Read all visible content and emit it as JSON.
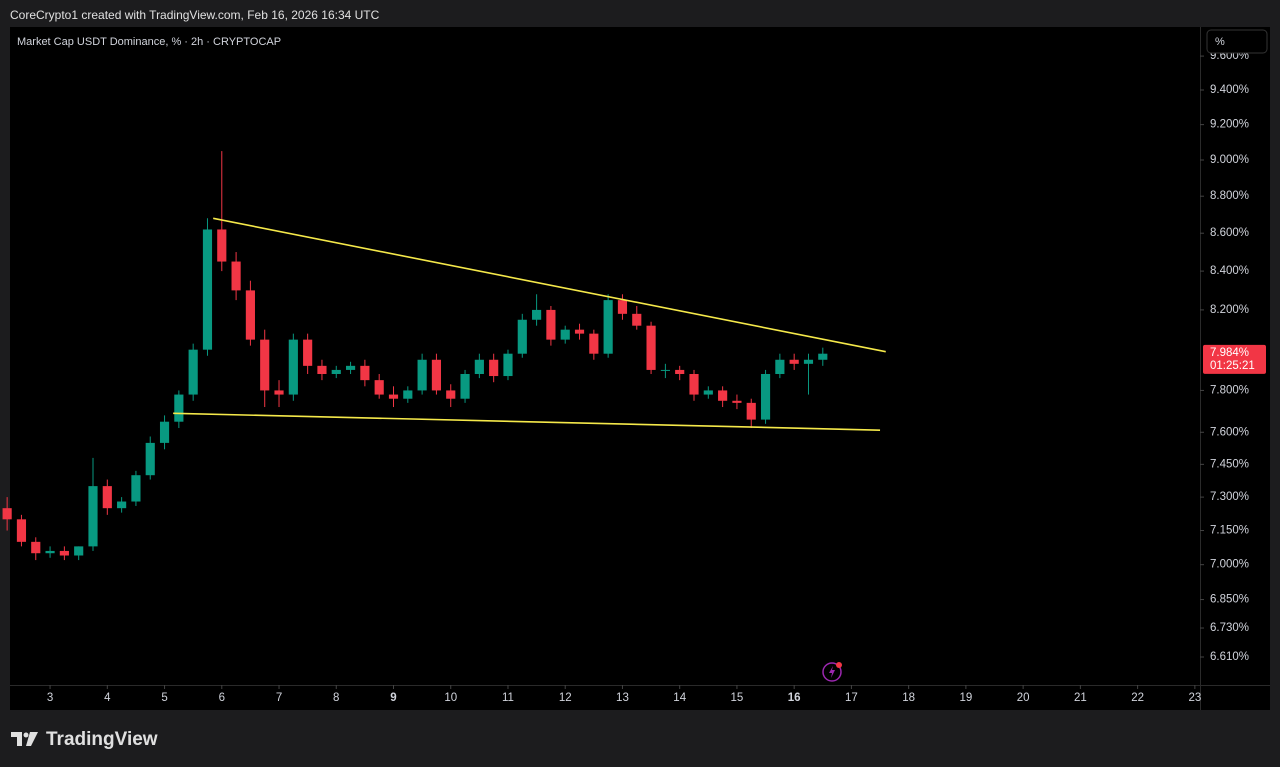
{
  "header": "CoreCrypto1 created with TradingView.com, Feb 16, 2026 16:34 UTC",
  "logo": "TradingView",
  "scale_button": "%",
  "chart_data": {
    "type": "candlestick",
    "title": "Market Cap USDT Dominance, % · 2h · CRYPTOCAP",
    "log_scale": true,
    "up_color": "#089981",
    "down_color": "#f23645",
    "x": [
      2.25,
      2.5,
      2.75,
      3,
      3.25,
      3.5,
      3.75,
      4,
      4.25,
      4.5,
      4.75,
      5,
      5.25,
      5.5,
      5.75,
      6,
      6.25,
      6.5,
      6.75,
      7,
      7.25,
      7.5,
      7.75,
      8,
      8.25,
      8.5,
      8.75,
      9,
      9.25,
      9.5,
      9.75,
      10,
      10.25,
      10.5,
      10.75,
      11,
      11.25,
      11.5,
      11.75,
      12,
      12.25,
      12.5,
      12.75,
      13,
      13.25,
      13.5,
      13.75,
      14,
      14.25,
      14.5,
      14.75,
      15,
      15.25,
      15.5,
      15.75,
      16,
      16.25,
      16.5
    ],
    "open": [
      7.25,
      7.2,
      7.1,
      7.05,
      7.06,
      7.04,
      7.08,
      7.35,
      7.25,
      7.28,
      7.4,
      7.55,
      7.65,
      7.78,
      8.0,
      8.62,
      8.45,
      8.3,
      8.05,
      7.8,
      7.78,
      8.05,
      7.92,
      7.88,
      7.9,
      7.92,
      7.85,
      7.78,
      7.76,
      7.8,
      7.95,
      7.8,
      7.76,
      7.88,
      7.95,
      7.87,
      7.98,
      8.15,
      8.2,
      8.05,
      8.1,
      8.08,
      7.98,
      8.25,
      8.18,
      8.12,
      7.9,
      7.9,
      7.88,
      7.78,
      7.8,
      7.75,
      7.74,
      7.66,
      7.88,
      7.95,
      7.93,
      7.95
    ],
    "high": [
      7.3,
      7.22,
      7.12,
      7.08,
      7.08,
      7.08,
      7.48,
      7.38,
      7.3,
      7.42,
      7.58,
      7.68,
      7.8,
      8.03,
      8.68,
      9.05,
      8.5,
      8.35,
      8.1,
      7.85,
      8.08,
      8.08,
      7.95,
      7.92,
      7.94,
      7.95,
      7.88,
      7.82,
      7.82,
      7.98,
      7.98,
      7.83,
      7.9,
      7.98,
      7.98,
      8.0,
      8.18,
      8.28,
      8.22,
      8.12,
      8.13,
      8.1,
      8.28,
      8.28,
      8.22,
      8.14,
      7.93,
      7.92,
      7.9,
      7.82,
      7.82,
      7.78,
      7.76,
      7.9,
      7.98,
      7.98,
      7.98,
      8.01
    ],
    "low": [
      7.15,
      7.08,
      7.02,
      7.03,
      7.02,
      7.02,
      7.06,
      7.22,
      7.23,
      7.26,
      7.38,
      7.52,
      7.62,
      7.75,
      7.97,
      8.4,
      8.25,
      8.02,
      7.72,
      7.72,
      7.75,
      7.88,
      7.85,
      7.86,
      7.88,
      7.82,
      7.76,
      7.72,
      7.74,
      7.78,
      7.78,
      7.72,
      7.74,
      7.86,
      7.84,
      7.85,
      7.96,
      8.12,
      8.02,
      8.03,
      8.05,
      7.95,
      7.96,
      8.15,
      8.1,
      7.88,
      7.86,
      7.85,
      7.75,
      7.76,
      7.72,
      7.71,
      7.62,
      7.64,
      7.86,
      7.9,
      7.78,
      7.92
    ],
    "close": [
      7.2,
      7.1,
      7.05,
      7.06,
      7.04,
      7.08,
      7.35,
      7.25,
      7.28,
      7.4,
      7.55,
      7.65,
      7.78,
      8.0,
      8.62,
      8.45,
      8.3,
      8.05,
      7.8,
      7.78,
      8.05,
      7.92,
      7.88,
      7.9,
      7.92,
      7.85,
      7.78,
      7.76,
      7.8,
      7.95,
      7.8,
      7.76,
      7.88,
      7.95,
      7.87,
      7.98,
      8.15,
      8.2,
      8.05,
      8.1,
      8.08,
      7.98,
      8.25,
      8.18,
      8.12,
      7.9,
      7.9,
      7.88,
      7.78,
      7.8,
      7.75,
      7.74,
      7.66,
      7.88,
      7.95,
      7.93,
      7.95,
      7.98
    ],
    "trendlines": [
      {
        "color": "#f5e94a",
        "x": [
          5.85,
          17.6
        ],
        "y": [
          8.68,
          7.99
        ]
      },
      {
        "color": "#f5e94a",
        "x": [
          5.15,
          17.5
        ],
        "y": [
          7.69,
          7.61
        ]
      }
    ],
    "last_price": {
      "value": 7.984,
      "label": "7.984%",
      "countdown": "01:25:21",
      "color": "#f23645"
    },
    "xlim": [
      2.3,
      23.09
    ],
    "xticks": [
      3,
      4,
      5,
      6,
      7,
      8,
      9,
      10,
      11,
      12,
      13,
      14,
      15,
      16,
      17,
      18,
      19,
      20,
      21,
      22,
      23
    ],
    "bold_xticks": [
      9,
      16
    ],
    "ylim": [
      6.496,
      9.775
    ],
    "yticks": [
      {
        "value": 6.61,
        "label": "6.610%"
      },
      {
        "value": 6.73,
        "label": "6.730%"
      },
      {
        "value": 6.85,
        "label": "6.850%"
      },
      {
        "value": 7.0,
        "label": "7.000%"
      },
      {
        "value": 7.15,
        "label": "7.150%"
      },
      {
        "value": 7.3,
        "label": "7.300%"
      },
      {
        "value": 7.45,
        "label": "7.450%"
      },
      {
        "value": 7.6,
        "label": "7.600%"
      },
      {
        "value": 7.8,
        "label": "7.800%"
      },
      {
        "value": 8.2,
        "label": "8.200%"
      },
      {
        "value": 8.4,
        "label": "8.400%"
      },
      {
        "value": 8.6,
        "label": "8.600%"
      },
      {
        "value": 8.8,
        "label": "8.800%"
      },
      {
        "value": 9.0,
        "label": "9.000%"
      },
      {
        "value": 9.2,
        "label": "9.200%"
      },
      {
        "value": 9.4,
        "label": "9.400%"
      },
      {
        "value": 9.6,
        "label": "9.600%"
      }
    ]
  }
}
